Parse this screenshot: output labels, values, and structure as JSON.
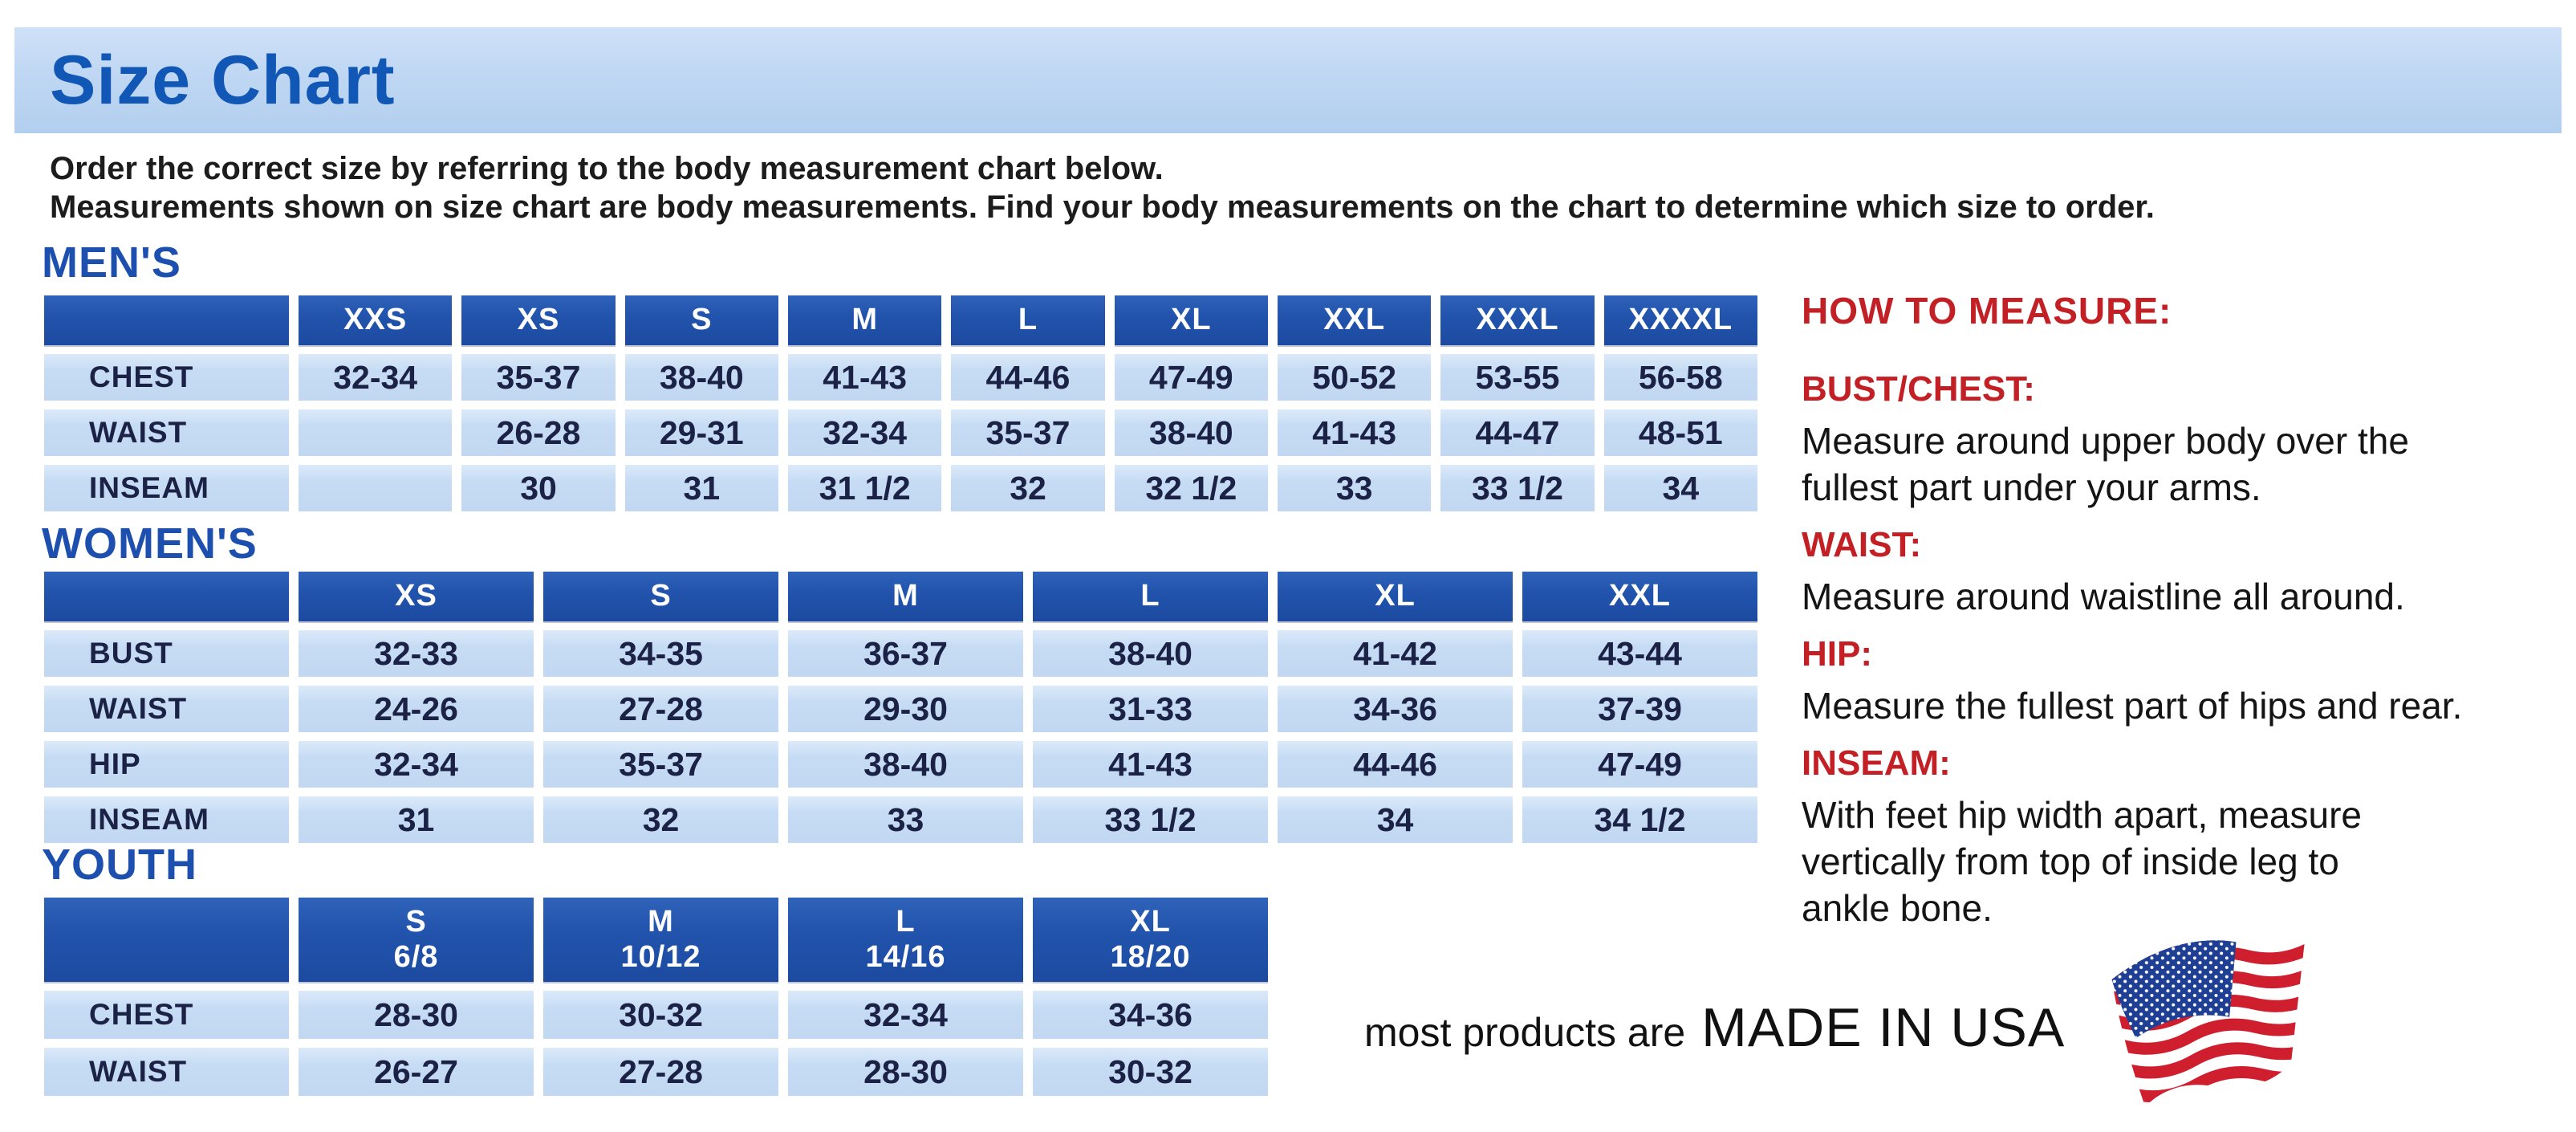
{
  "title": "Size Chart",
  "intro": {
    "line1": "Order the correct size by referring to the body measurement chart below.",
    "line2": "Measurements shown on size chart are body measurements.  Find your body measurements on the chart to determine which size to order."
  },
  "colors": {
    "banner_bg": "#bfd7f3",
    "title_blue": "#1157b5",
    "heading_blue": "#1c4fae",
    "header_cell_blue": "#2254ad",
    "cell_blue": "#c6dcf4",
    "red": "#c32026",
    "text_dark": "#1b2245",
    "flag_red": "#cf1f2f",
    "flag_blue": "#1e3f94"
  },
  "tables": {
    "mens": {
      "heading": "MEN'S",
      "columns": [
        "",
        "XXS",
        "XS",
        "S",
        "M",
        "L",
        "XL",
        "XXL",
        "XXXL",
        "XXXXL"
      ],
      "rows": [
        {
          "label": "CHEST",
          "values": [
            "32-34",
            "35-37",
            "38-40",
            "41-43",
            "44-46",
            "47-49",
            "50-52",
            "53-55",
            "56-58"
          ]
        },
        {
          "label": "WAIST",
          "values": [
            "",
            "26-28",
            "29-31",
            "32-34",
            "35-37",
            "38-40",
            "41-43",
            "44-47",
            "48-51"
          ]
        },
        {
          "label": "INSEAM",
          "values": [
            "",
            "30",
            "31",
            "31 1/2",
            "32",
            "32 1/2",
            "33",
            "33 1/2",
            "34"
          ]
        }
      ]
    },
    "womens": {
      "heading": "WOMEN'S",
      "columns": [
        "",
        "XS",
        "S",
        "M",
        "L",
        "XL",
        "XXL"
      ],
      "rows": [
        {
          "label": "BUST",
          "values": [
            "32-33",
            "34-35",
            "36-37",
            "38-40",
            "41-42",
            "43-44"
          ]
        },
        {
          "label": "WAIST",
          "values": [
            "24-26",
            "27-28",
            "29-30",
            "31-33",
            "34-36",
            "37-39"
          ]
        },
        {
          "label": "HIP",
          "values": [
            "32-34",
            "35-37",
            "38-40",
            "41-43",
            "44-46",
            "47-49"
          ]
        },
        {
          "label": "INSEAM",
          "values": [
            "31",
            "32",
            "33",
            "33 1/2",
            "34",
            "34 1/2"
          ]
        }
      ]
    },
    "youth": {
      "heading": "YOUTH",
      "columns": [
        "",
        "S\n6/8",
        "M\n10/12",
        "L\n14/16",
        "XL\n18/20"
      ],
      "rows": [
        {
          "label": "CHEST",
          "values": [
            "28-30",
            "30-32",
            "32-34",
            "34-36"
          ]
        },
        {
          "label": "WAIST",
          "values": [
            "26-27",
            "27-28",
            "28-30",
            "30-32"
          ]
        }
      ]
    }
  },
  "how_to_measure": {
    "heading": "HOW TO MEASURE:",
    "sections": [
      {
        "label": "BUST/CHEST:",
        "text": "Measure around upper body over the\nfullest part under your arms."
      },
      {
        "label": "WAIST:",
        "text": "Measure around waistline all around."
      },
      {
        "label": "HIP:",
        "text": "Measure the fullest part of hips and rear."
      },
      {
        "label": "INSEAM:",
        "text": "With feet hip width apart, measure\nvertically from top of inside leg to\nankle bone."
      }
    ]
  },
  "footer": {
    "prefix": "most products are",
    "emphasis": "MADE IN USA",
    "flag_icon": "usa-flag-icon"
  }
}
